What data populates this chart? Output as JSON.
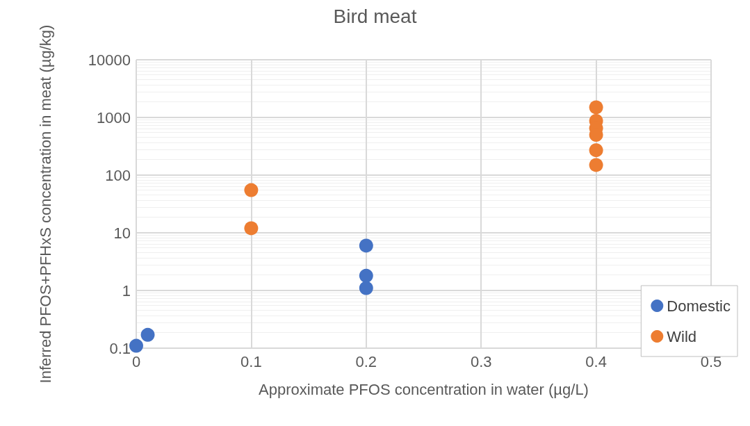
{
  "chart_data": {
    "type": "scatter",
    "title": "Bird meat",
    "xlabel": "Approximate PFOS concentration in water (µg/L)",
    "ylabel": "Inferred PFOS+PFHxS concentration in meat (µg/kg)",
    "xlim": [
      0,
      0.5
    ],
    "xticks": [
      0,
      0.1,
      0.2,
      0.3,
      0.4,
      0.5
    ],
    "ylim": [
      0.1,
      10000
    ],
    "yticks": [
      0.1,
      1,
      10,
      100,
      1000,
      10000
    ],
    "log": "y",
    "grid": true,
    "legend": "bottom right",
    "marker": "circle",
    "series": [
      {
        "name": "Domestic",
        "color": "#4472c4",
        "x": [
          0,
          0.01,
          0.2,
          0.2,
          0.2
        ],
        "values": [
          0.11,
          0.17,
          6,
          1.8,
          1.1
        ]
      },
      {
        "name": "Wild",
        "color": "#ed7d31",
        "x": [
          0.1,
          0.1,
          0.4,
          0.4,
          0.4,
          0.4,
          0.4,
          0.4
        ],
        "values": [
          55,
          12,
          1500,
          870,
          650,
          500,
          270,
          150
        ]
      }
    ]
  }
}
